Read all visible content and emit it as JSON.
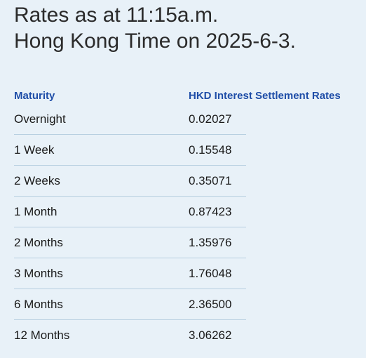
{
  "heading": {
    "line1": "Rates as at 11:15a.m.",
    "line2": "Hong Kong Time on 2025-6-3."
  },
  "table": {
    "headers": {
      "maturity": "Maturity",
      "rate": "HKD Interest Settlement Rates"
    },
    "rows": [
      {
        "maturity": "Overnight",
        "rate": "0.02027"
      },
      {
        "maturity": "1 Week",
        "rate": "0.15548"
      },
      {
        "maturity": "2 Weeks",
        "rate": "0.35071"
      },
      {
        "maturity": "1 Month",
        "rate": "0.87423"
      },
      {
        "maturity": "2 Months",
        "rate": "1.35976"
      },
      {
        "maturity": "3 Months",
        "rate": "1.76048"
      },
      {
        "maturity": "6 Months",
        "rate": "2.36500"
      },
      {
        "maturity": "12 Months",
        "rate": "3.06262"
      }
    ]
  },
  "colors": {
    "background": "#e8f1f8",
    "header_text": "#1f4ea8",
    "row_rule": "#b7cfe0"
  }
}
